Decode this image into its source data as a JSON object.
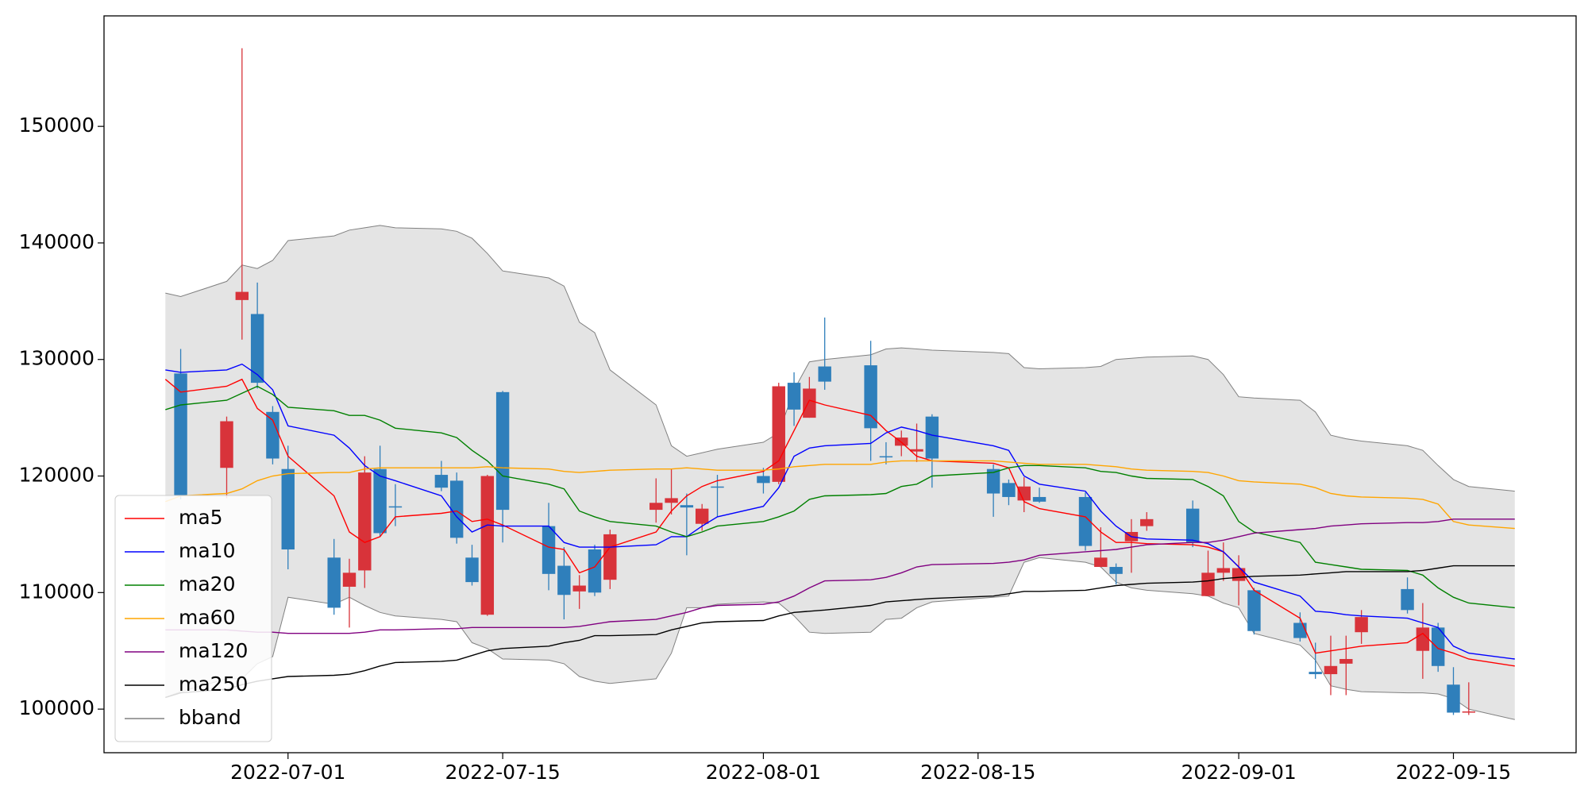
{
  "chart_data": {
    "type": "candlestick",
    "x": [
      "2022-06-23",
      "2022-06-24",
      "2022-06-27",
      "2022-06-28",
      "2022-06-29",
      "2022-06-30",
      "2022-07-01",
      "2022-07-04",
      "2022-07-05",
      "2022-07-06",
      "2022-07-07",
      "2022-07-08",
      "2022-07-11",
      "2022-07-12",
      "2022-07-13",
      "2022-07-14",
      "2022-07-15",
      "2022-07-18",
      "2022-07-19",
      "2022-07-20",
      "2022-07-21",
      "2022-07-22",
      "2022-07-25",
      "2022-07-26",
      "2022-07-27",
      "2022-07-28",
      "2022-07-29",
      "2022-08-01",
      "2022-08-02",
      "2022-08-03",
      "2022-08-04",
      "2022-08-05",
      "2022-08-08",
      "2022-08-09",
      "2022-08-10",
      "2022-08-11",
      "2022-08-12",
      "2022-08-16",
      "2022-08-17",
      "2022-08-18",
      "2022-08-19",
      "2022-08-22",
      "2022-08-23",
      "2022-08-24",
      "2022-08-25",
      "2022-08-26",
      "2022-08-29",
      "2022-08-30",
      "2022-08-31",
      "2022-09-01",
      "2022-09-02",
      "2022-09-05",
      "2022-09-06",
      "2022-09-07",
      "2022-09-08",
      "2022-09-09",
      "2022-09-12",
      "2022-09-13",
      "2022-09-14",
      "2022-09-15",
      "2022-09-16",
      "2022-09-19"
    ],
    "open": [
      null,
      128800,
      120700,
      135100,
      133900,
      125500,
      120600,
      113000,
      110500,
      111900,
      120600,
      117400,
      120100,
      119600,
      113000,
      108100,
      127200,
      115700,
      112300,
      110100,
      113700,
      111100,
      117100,
      117700,
      117500,
      115900,
      119100,
      120000,
      119500,
      128000,
      125000,
      129400,
      129500,
      121700,
      122600,
      122100,
      125100,
      120600,
      119400,
      117900,
      118200,
      118200,
      112200,
      112200,
      114400,
      115700,
      117200,
      109700,
      111700,
      111000,
      110200,
      107400,
      103200,
      103000,
      103900,
      106600,
      110300,
      105000,
      107000,
      102100,
      99700,
      null
    ],
    "high": [
      null,
      130900,
      125100,
      156700,
      136600,
      126000,
      122600,
      114600,
      112900,
      121700,
      122600,
      119300,
      121300,
      120300,
      114100,
      120100,
      127300,
      117700,
      113900,
      111500,
      114100,
      115400,
      119800,
      120600,
      118500,
      117600,
      120100,
      120700,
      128000,
      128900,
      128500,
      133600,
      131600,
      122900,
      123900,
      124500,
      125300,
      121000,
      119700,
      119900,
      119000,
      118600,
      115600,
      112500,
      116300,
      116900,
      117900,
      113600,
      114300,
      113200,
      110400,
      108300,
      105700,
      106300,
      106300,
      108500,
      111300,
      109100,
      107400,
      103600,
      102300,
      null
    ],
    "low": [
      null,
      118000,
      118100,
      131700,
      127500,
      121000,
      112000,
      108100,
      107000,
      110400,
      114800,
      115700,
      118700,
      114200,
      110600,
      108000,
      114300,
      110200,
      107700,
      108600,
      109700,
      110300,
      116000,
      116700,
      113200,
      115300,
      116500,
      118500,
      119300,
      124300,
      125000,
      127400,
      121300,
      121000,
      121700,
      121200,
      119000,
      116500,
      117500,
      116900,
      117700,
      113600,
      112200,
      110700,
      111700,
      115300,
      113900,
      109700,
      111000,
      108900,
      106400,
      105800,
      102600,
      101200,
      101200,
      105600,
      108200,
      102600,
      103200,
      99500,
      99500,
      null
    ],
    "close": [
      null,
      118300,
      124700,
      135800,
      128000,
      121500,
      113700,
      108700,
      111700,
      120300,
      115100,
      117300,
      119000,
      114700,
      110900,
      120000,
      117100,
      111600,
      109800,
      110600,
      110000,
      115000,
      117700,
      118100,
      117300,
      117200,
      119000,
      119400,
      127700,
      125700,
      127500,
      128100,
      124100,
      121600,
      123300,
      122300,
      121500,
      118500,
      118200,
      119100,
      117800,
      114000,
      113000,
      111600,
      115200,
      116300,
      114300,
      111700,
      112100,
      112100,
      106700,
      106100,
      103000,
      103700,
      104300,
      107900,
      108500,
      107000,
      103700,
      99700,
      99800,
      null
    ],
    "up_color": "#d8333a",
    "down_color": "#2f7fbb",
    "series": [
      {
        "name": "ma5",
        "color": "#ff0000",
        "values": [
          128300,
          127200,
          127700,
          128300,
          125800,
          124800,
          121700,
          118300,
          115200,
          114300,
          114800,
          116500,
          116800,
          117000,
          116100,
          116300,
          115800,
          113900,
          113700,
          111700,
          112200,
          113900,
          115200,
          117000,
          118300,
          119100,
          119600,
          120400,
          121300,
          123900,
          126500,
          126100,
          125200,
          123900,
          122900,
          121700,
          121300,
          121100,
          120700,
          117800,
          117200,
          116500,
          115200,
          114300,
          114300,
          114200,
          114100,
          113900,
          113500,
          112200,
          110200,
          107800,
          104800,
          105000,
          105200,
          105400,
          105700,
          106500,
          105200,
          104800,
          104300,
          103700
        ]
      },
      {
        "name": "ma10",
        "color": "#0000ff",
        "values": [
          129100,
          128900,
          129100,
          129600,
          128700,
          127400,
          124300,
          123500,
          122400,
          120900,
          120000,
          119600,
          118300,
          116500,
          115200,
          115800,
          115700,
          115700,
          114300,
          113900,
          113900,
          113900,
          114100,
          114800,
          114800,
          115700,
          116500,
          117400,
          119000,
          121700,
          122400,
          122600,
          122800,
          123700,
          124200,
          123900,
          123500,
          122600,
          122200,
          120000,
          119300,
          118700,
          117000,
          115700,
          114800,
          114600,
          114500,
          114200,
          113500,
          112200,
          110900,
          109700,
          108400,
          108300,
          108100,
          108000,
          107800,
          107400,
          107000,
          105400,
          104800,
          104300
        ]
      },
      {
        "name": "ma20",
        "color": "#008000",
        "values": [
          125700,
          126100,
          126500,
          127100,
          127700,
          127000,
          125900,
          125600,
          125200,
          125200,
          124800,
          124100,
          123700,
          123300,
          122200,
          121300,
          120000,
          119300,
          118900,
          117000,
          116500,
          116100,
          115700,
          115200,
          114800,
          115200,
          115700,
          116100,
          116500,
          117000,
          118000,
          118300,
          118400,
          118500,
          119100,
          119300,
          120000,
          120300,
          120700,
          120900,
          120900,
          120700,
          120400,
          120300,
          120000,
          119800,
          119700,
          119100,
          118300,
          116100,
          115200,
          114300,
          112600,
          112400,
          112200,
          112000,
          111900,
          111500,
          110400,
          109600,
          109100,
          108700
        ]
      },
      {
        "name": "ma60",
        "color": "#ffa500",
        "values": [
          117800,
          118300,
          118500,
          118900,
          119600,
          120000,
          120200,
          120300,
          120300,
          120600,
          120700,
          120700,
          120700,
          120700,
          120700,
          120800,
          120700,
          120600,
          120400,
          120300,
          120400,
          120500,
          120600,
          120600,
          120700,
          120600,
          120500,
          120500,
          120600,
          120800,
          120900,
          121000,
          121000,
          121200,
          121300,
          121300,
          121300,
          121300,
          121200,
          121100,
          121000,
          121000,
          120900,
          120800,
          120600,
          120500,
          120400,
          120300,
          120000,
          119600,
          119500,
          119300,
          119000,
          118500,
          118300,
          118200,
          118100,
          118000,
          117600,
          116100,
          115800,
          115500
        ]
      },
      {
        "name": "ma120",
        "color": "#800080",
        "values": [
          106800,
          106800,
          106800,
          106700,
          106600,
          106600,
          106500,
          106500,
          106500,
          106600,
          106800,
          106800,
          106900,
          106900,
          107000,
          107000,
          107000,
          107000,
          107000,
          107100,
          107300,
          107500,
          107700,
          108000,
          108300,
          108700,
          108900,
          109000,
          109200,
          109700,
          110400,
          111000,
          111100,
          111300,
          111700,
          112200,
          112400,
          112500,
          112600,
          112800,
          113200,
          113500,
          113600,
          113700,
          113900,
          114100,
          114300,
          114300,
          114500,
          114800,
          115100,
          115400,
          115500,
          115700,
          115800,
          115900,
          116000,
          116000,
          116100,
          116300,
          116300,
          116300
        ]
      },
      {
        "name": "ma250",
        "color": "#000000",
        "values": [
          101000,
          101400,
          101700,
          102100,
          102400,
          102600,
          102800,
          102900,
          103000,
          103300,
          103700,
          104000,
          104100,
          104200,
          104600,
          105000,
          105200,
          105400,
          105700,
          105900,
          106300,
          106300,
          106400,
          106800,
          107100,
          107400,
          107500,
          107600,
          108000,
          108300,
          108400,
          108500,
          108900,
          109200,
          109300,
          109400,
          109500,
          109700,
          109900,
          110100,
          110100,
          110200,
          110400,
          110600,
          110700,
          110800,
          110900,
          111000,
          111200,
          111300,
          111400,
          111500,
          111600,
          111700,
          111800,
          111800,
          111800,
          111900,
          112100,
          112300,
          112300,
          112300
        ]
      }
    ],
    "band": {
      "name": "bband",
      "color": "#808080",
      "fill": "#e4e4e4",
      "upper": [
        135700,
        135400,
        136700,
        138100,
        137800,
        138500,
        140200,
        140600,
        141100,
        141300,
        141500,
        141300,
        141200,
        141000,
        140400,
        139100,
        137600,
        137000,
        136300,
        133200,
        132300,
        129100,
        126100,
        122600,
        121700,
        122000,
        122300,
        122900,
        123700,
        127400,
        129800,
        130000,
        130400,
        130900,
        131000,
        130900,
        130800,
        130600,
        130500,
        129300,
        129200,
        129300,
        129400,
        130000,
        130100,
        130200,
        130300,
        130000,
        128700,
        126800,
        126700,
        126500,
        125500,
        123500,
        123200,
        123000,
        122600,
        122200,
        120900,
        119700,
        119100,
        118700
      ],
      "lower": [
        101000,
        101500,
        102600,
        102600,
        103900,
        104500,
        109600,
        109000,
        109600,
        108900,
        108300,
        108000,
        107700,
        107500,
        105700,
        105200,
        104300,
        104200,
        103900,
        102800,
        102400,
        102200,
        102600,
        104800,
        108700,
        108700,
        109000,
        109200,
        109100,
        108000,
        106600,
        106500,
        106600,
        107700,
        107800,
        108700,
        109200,
        109600,
        109700,
        112600,
        113000,
        112600,
        112200,
        110900,
        110400,
        110200,
        109900,
        109700,
        109100,
        108700,
        106500,
        105500,
        104200,
        102000,
        101700,
        101500,
        101400,
        101400,
        101300,
        100900,
        100000,
        99100
      ]
    },
    "xlim": [
      "2022-06-19",
      "2022-09-23"
    ],
    "xticks": [
      "2022-07-01",
      "2022-07-15",
      "2022-08-01",
      "2022-08-15",
      "2022-09-01",
      "2022-09-15"
    ],
    "ylim": [
      96260,
      159480
    ],
    "yticks": [
      100000,
      110000,
      120000,
      130000,
      140000,
      150000
    ],
    "legend": "lower left"
  }
}
